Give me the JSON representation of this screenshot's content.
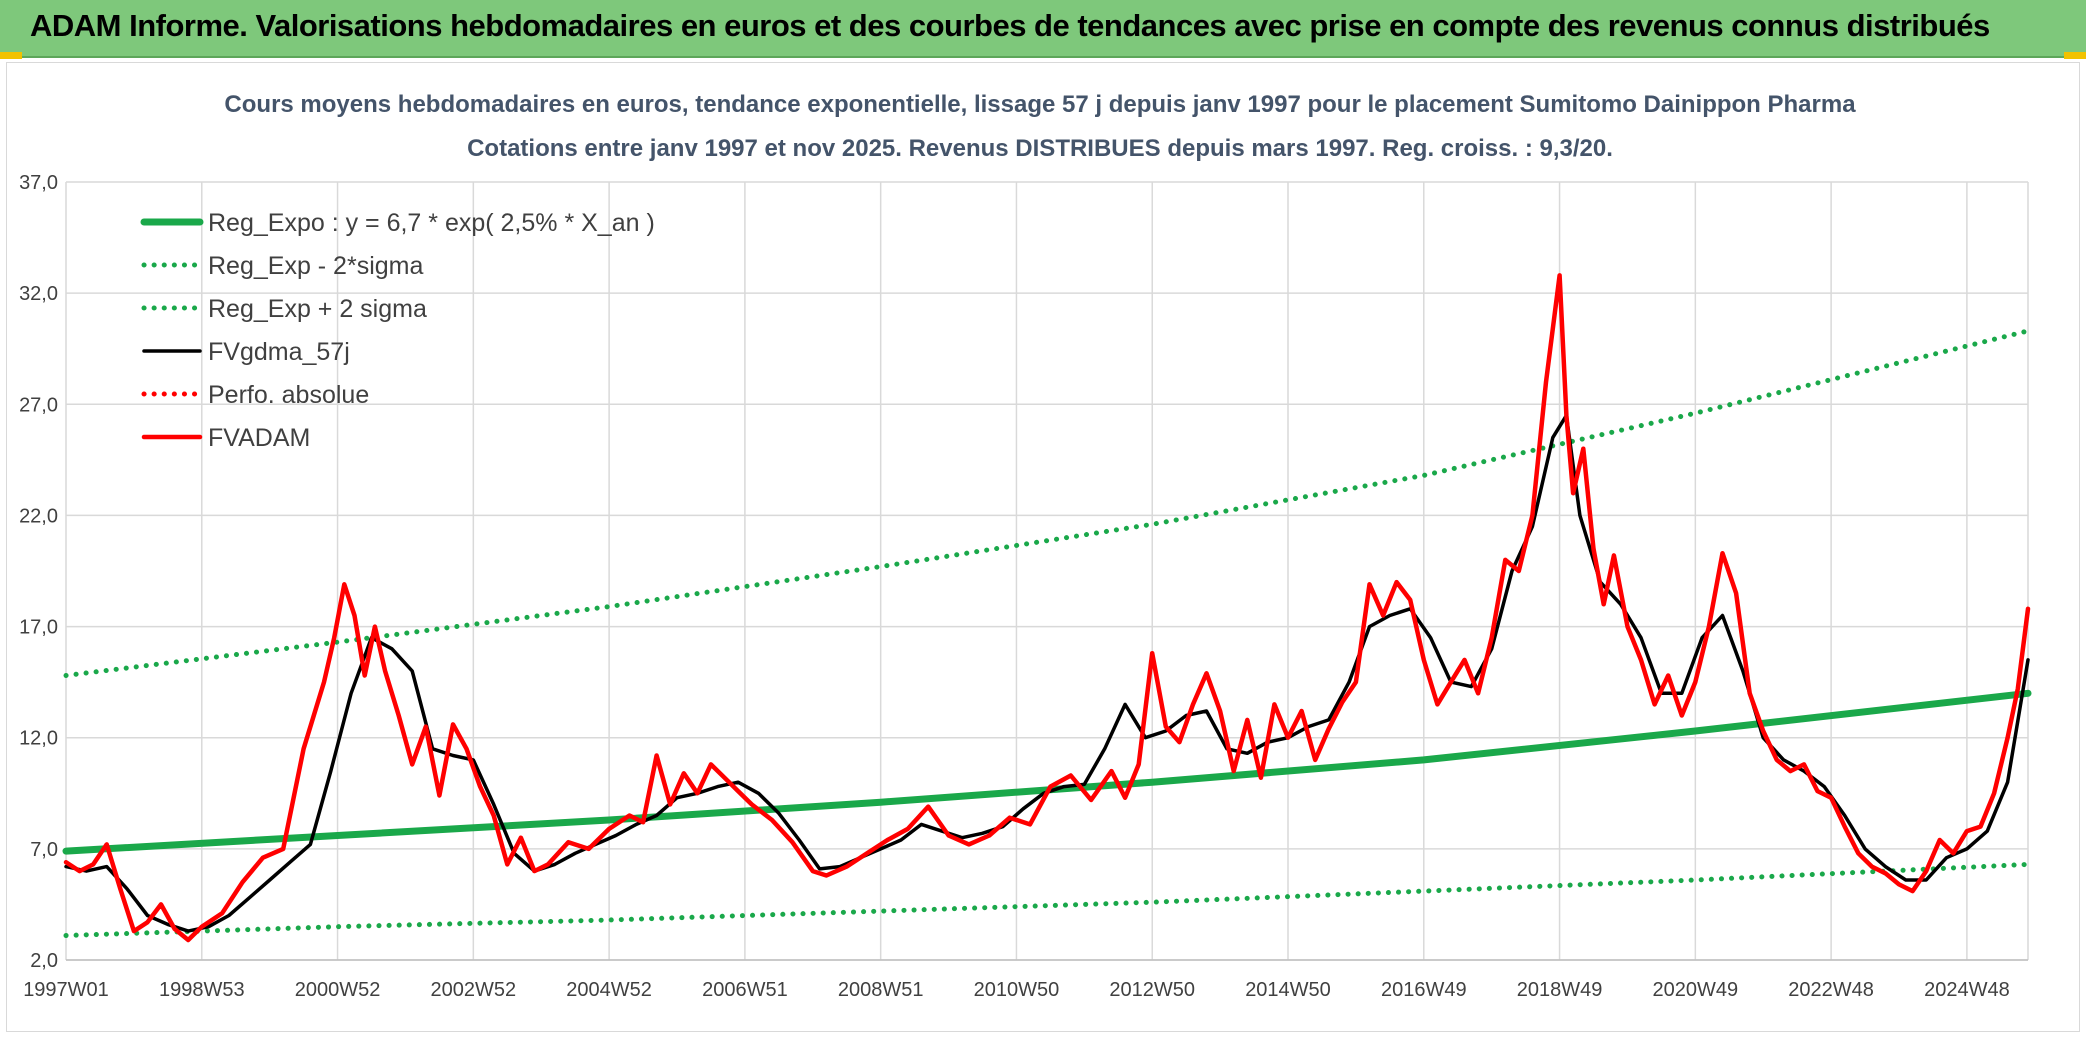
{
  "banner": {
    "title": "ADAM Informe. Valorisations hebdomadaires en euros et des courbes de tendances avec prise en compte des revenus connus distribués"
  },
  "colors": {
    "banner_bg": "#7ec87b",
    "reg_green": "#1aa84a",
    "price_red": "#ff0000",
    "smooth_black": "#000000",
    "grid": "#d9d9d9"
  },
  "chart_data": {
    "type": "line",
    "title": "Cours moyens hebdomadaires en euros, tendance exponentielle, lissage 57 j depuis janv 1997 pour le placement Sumitomo Dainippon Pharma",
    "subtitle": "Cotations entre janv 1997 et nov 2025. Revenus DISTRIBUES depuis mars 1997. Reg. croiss. : 9,3/20.",
    "xlabel": "",
    "ylabel": "",
    "ylim": [
      2.0,
      37.0
    ],
    "xlim": [
      1997.0,
      2025.9
    ],
    "grid": true,
    "legend_placement": "top-left",
    "y_ticks": [
      "2,0",
      "7,0",
      "12,0",
      "17,0",
      "22,0",
      "27,0",
      "32,0",
      "37,0"
    ],
    "x_ticks": [
      {
        "label": "1997W01",
        "x": 1997.0
      },
      {
        "label": "1998W53",
        "x": 1999.0
      },
      {
        "label": "2000W52",
        "x": 2001.0
      },
      {
        "label": "2002W52",
        "x": 2003.0
      },
      {
        "label": "2004W52",
        "x": 2005.0
      },
      {
        "label": "2006W51",
        "x": 2007.0
      },
      {
        "label": "2008W51",
        "x": 2009.0
      },
      {
        "label": "2010W50",
        "x": 2011.0
      },
      {
        "label": "2012W50",
        "x": 2013.0
      },
      {
        "label": "2014W50",
        "x": 2015.0
      },
      {
        "label": "2016W49",
        "x": 2017.0
      },
      {
        "label": "2018W49",
        "x": 2019.0
      },
      {
        "label": "2020W49",
        "x": 2021.0
      },
      {
        "label": "2022W48",
        "x": 2023.0
      },
      {
        "label": "2024W48",
        "x": 2025.0
      }
    ],
    "series": [
      {
        "name": "Reg_Expo : y = 6,7 * exp( 2,5% *  X_an )",
        "style": "solid-thick",
        "color": "#1aa84a",
        "x": [
          1997.0,
          2001.0,
          2005.0,
          2009.0,
          2013.0,
          2017.0,
          2021.0,
          2025.9
        ],
        "y": [
          6.9,
          7.6,
          8.3,
          9.1,
          10.0,
          11.0,
          12.3,
          14.0
        ]
      },
      {
        "name": "Reg_Exp - 2*sigma",
        "style": "dotted",
        "color": "#1aa84a",
        "x": [
          1997.0,
          2001.0,
          2005.0,
          2009.0,
          2013.0,
          2017.0,
          2021.0,
          2025.9
        ],
        "y": [
          3.1,
          3.5,
          3.8,
          4.2,
          4.6,
          5.1,
          5.6,
          6.3
        ]
      },
      {
        "name": "Reg_Exp + 2 sigma",
        "style": "dotted",
        "color": "#1aa84a",
        "x": [
          1997.0,
          2001.0,
          2005.0,
          2009.0,
          2013.0,
          2017.0,
          2021.0,
          2025.9
        ],
        "y": [
          14.8,
          16.3,
          17.9,
          19.7,
          21.6,
          23.8,
          26.6,
          30.3
        ]
      },
      {
        "name": "FVgdma_57j",
        "style": "solid",
        "color": "#000000",
        "x": [
          1997.0,
          1997.3,
          1997.6,
          1997.9,
          1998.2,
          1998.5,
          1998.8,
          1999.1,
          1999.4,
          1999.7,
          2000.0,
          2000.3,
          2000.6,
          2000.9,
          2001.2,
          2001.5,
          2001.8,
          2002.1,
          2002.4,
          2002.7,
          2003.0,
          2003.3,
          2003.6,
          2003.9,
          2004.2,
          2004.5,
          2004.8,
          2005.1,
          2005.4,
          2005.7,
          2006.0,
          2006.3,
          2006.6,
          2006.9,
          2007.2,
          2007.5,
          2007.8,
          2008.1,
          2008.4,
          2008.7,
          2009.0,
          2009.3,
          2009.6,
          2009.9,
          2010.2,
          2010.5,
          2010.8,
          2011.1,
          2011.4,
          2011.7,
          2012.0,
          2012.3,
          2012.6,
          2012.9,
          2013.2,
          2013.5,
          2013.8,
          2014.1,
          2014.4,
          2014.7,
          2015.0,
          2015.3,
          2015.6,
          2015.9,
          2016.2,
          2016.5,
          2016.8,
          2017.1,
          2017.4,
          2017.7,
          2018.0,
          2018.3,
          2018.6,
          2018.9,
          2019.1,
          2019.3,
          2019.6,
          2019.9,
          2020.2,
          2020.5,
          2020.8,
          2021.1,
          2021.4,
          2021.7,
          2022.0,
          2022.3,
          2022.6,
          2022.9,
          2023.2,
          2023.5,
          2023.8,
          2024.1,
          2024.4,
          2024.7,
          2025.0,
          2025.3,
          2025.6,
          2025.9
        ],
        "y": [
          6.2,
          6.0,
          6.2,
          5.2,
          4.0,
          3.6,
          3.3,
          3.5,
          4.0,
          4.8,
          5.6,
          6.4,
          7.2,
          10.5,
          14.0,
          16.5,
          16.0,
          15.0,
          11.5,
          11.2,
          11.0,
          9.0,
          6.8,
          6.0,
          6.3,
          6.8,
          7.2,
          7.6,
          8.1,
          8.5,
          9.3,
          9.5,
          9.8,
          10.0,
          9.5,
          8.6,
          7.4,
          6.1,
          6.2,
          6.6,
          7.0,
          7.4,
          8.1,
          7.8,
          7.5,
          7.7,
          8.0,
          8.8,
          9.5,
          9.8,
          9.9,
          11.5,
          13.5,
          12.0,
          12.3,
          13.0,
          13.2,
          11.5,
          11.3,
          11.8,
          12.0,
          12.5,
          12.8,
          14.5,
          17.0,
          17.5,
          17.8,
          16.5,
          14.5,
          14.3,
          16.0,
          19.5,
          21.5,
          25.5,
          26.5,
          22.0,
          19.0,
          18.0,
          16.5,
          14.0,
          14.0,
          16.5,
          17.5,
          15.0,
          12.0,
          11.0,
          10.5,
          9.8,
          8.5,
          7.0,
          6.2,
          5.6,
          5.6,
          6.6,
          7.0,
          7.8,
          10.0,
          15.5
        ]
      },
      {
        "name": "Perfo. absolue",
        "style": "dotted",
        "color": "#ff0000",
        "x": [],
        "y": []
      },
      {
        "name": "FVADAM",
        "style": "solid-thick",
        "color": "#ff0000",
        "x": [
          1997.0,
          1997.2,
          1997.4,
          1997.6,
          1997.8,
          1998.0,
          1998.2,
          1998.4,
          1998.6,
          1998.8,
          1999.0,
          1999.3,
          1999.6,
          1999.9,
          2000.2,
          2000.5,
          2000.8,
          2000.95,
          2001.1,
          2001.25,
          2001.4,
          2001.55,
          2001.7,
          2001.9,
          2002.1,
          2002.3,
          2002.5,
          2002.7,
          2002.9,
          2003.1,
          2003.3,
          2003.5,
          2003.7,
          2003.9,
          2004.1,
          2004.4,
          2004.7,
          2005.0,
          2005.3,
          2005.5,
          2005.7,
          2005.9,
          2006.1,
          2006.3,
          2006.5,
          2006.7,
          2006.9,
          2007.1,
          2007.4,
          2007.7,
          2008.0,
          2008.2,
          2008.5,
          2008.8,
          2009.1,
          2009.4,
          2009.7,
          2010.0,
          2010.3,
          2010.6,
          2010.9,
          2011.2,
          2011.5,
          2011.8,
          2012.1,
          2012.4,
          2012.6,
          2012.8,
          2013.0,
          2013.2,
          2013.4,
          2013.6,
          2013.8,
          2014.0,
          2014.2,
          2014.4,
          2014.6,
          2014.8,
          2015.0,
          2015.2,
          2015.4,
          2015.6,
          2015.8,
          2016.0,
          2016.2,
          2016.4,
          2016.6,
          2016.8,
          2017.0,
          2017.2,
          2017.4,
          2017.6,
          2017.8,
          2018.0,
          2018.2,
          2018.4,
          2018.6,
          2018.8,
          2019.0,
          2019.1,
          2019.2,
          2019.35,
          2019.5,
          2019.65,
          2019.8,
          2020.0,
          2020.2,
          2020.4,
          2020.6,
          2020.8,
          2021.0,
          2021.2,
          2021.4,
          2021.6,
          2021.8,
          2022.0,
          2022.2,
          2022.4,
          2022.6,
          2022.8,
          2023.0,
          2023.2,
          2023.4,
          2023.6,
          2023.8,
          2024.0,
          2024.2,
          2024.4,
          2024.6,
          2024.8,
          2025.0,
          2025.2,
          2025.4,
          2025.6,
          2025.75,
          2025.9
        ],
        "y": [
          6.4,
          6.0,
          6.3,
          7.2,
          5.2,
          3.3,
          3.7,
          4.5,
          3.4,
          2.9,
          3.5,
          4.1,
          5.5,
          6.6,
          7.0,
          11.5,
          14.5,
          16.5,
          18.9,
          17.5,
          14.8,
          17.0,
          15.0,
          13.0,
          10.8,
          12.5,
          9.4,
          12.6,
          11.5,
          9.8,
          8.5,
          6.3,
          7.5,
          6.0,
          6.3,
          7.3,
          7.0,
          7.9,
          8.5,
          8.2,
          11.2,
          9.0,
          10.4,
          9.5,
          10.8,
          10.2,
          9.6,
          9.0,
          8.3,
          7.3,
          6.0,
          5.8,
          6.2,
          6.8,
          7.4,
          7.9,
          8.9,
          7.6,
          7.2,
          7.6,
          8.4,
          8.1,
          9.8,
          10.3,
          9.2,
          10.5,
          9.3,
          10.8,
          15.8,
          12.5,
          11.8,
          13.5,
          14.9,
          13.2,
          10.5,
          12.8,
          10.2,
          13.5,
          12.0,
          13.2,
          11.0,
          12.4,
          13.6,
          14.5,
          18.9,
          17.5,
          19.0,
          18.2,
          15.5,
          13.5,
          14.5,
          15.5,
          14.0,
          16.5,
          20.0,
          19.5,
          22.0,
          28.0,
          32.8,
          26.5,
          23.0,
          25.0,
          20.5,
          18.0,
          20.2,
          17.0,
          15.5,
          13.5,
          14.8,
          13.0,
          14.5,
          17.0,
          20.3,
          18.5,
          14.0,
          12.3,
          11.0,
          10.5,
          10.8,
          9.6,
          9.3,
          8.0,
          6.8,
          6.2,
          5.9,
          5.4,
          5.1,
          6.0,
          7.4,
          6.8,
          7.8,
          8.0,
          9.5,
          12.0,
          14.2,
          17.8
        ]
      }
    ]
  }
}
